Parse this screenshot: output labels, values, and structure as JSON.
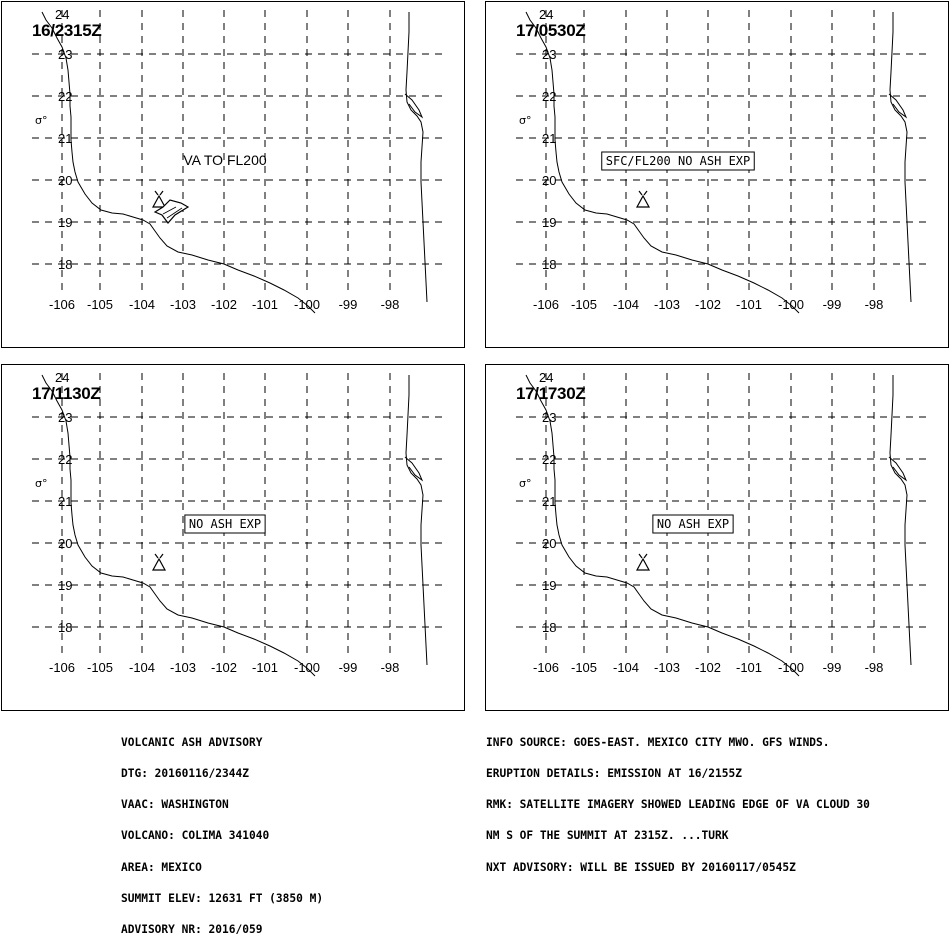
{
  "panels": [
    {
      "time": "16/2315Z",
      "annotation": "VA TO FL200",
      "boxed": false,
      "ash_cloud": true
    },
    {
      "time": "17/0530Z",
      "annotation": "SFC/FL200 NO ASH EXP",
      "boxed": true,
      "ash_cloud": false
    },
    {
      "time": "17/1130Z",
      "annotation": "NO ASH EXP",
      "boxed": true,
      "ash_cloud": false
    },
    {
      "time": "17/1730Z",
      "annotation": "NO ASH EXP",
      "boxed": true,
      "ash_cloud": false
    }
  ],
  "map": {
    "lat_labels": [
      "24",
      "23",
      "22",
      "21",
      "20",
      "19",
      "18"
    ],
    "lon_labels": [
      "-106",
      "-105",
      "-104",
      "-103",
      "-102",
      "-101",
      "-100",
      "-99",
      "-98"
    ],
    "coast_label": "σ°"
  },
  "footer_left": [
    "VOLCANIC ASH ADVISORY",
    "DTG: 20160116/2344Z",
    "VAAC: WASHINGTON",
    "VOLCANO: COLIMA 341040",
    "AREA: MEXICO",
    "SUMMIT ELEV: 12631 FT (3850 M)",
    "ADVISORY NR: 2016/059"
  ],
  "footer_right": [
    "INFO SOURCE: GOES-EAST. MEXICO CITY MWO. GFS WINDS.",
    "ERUPTION DETAILS: EMISSION AT 16/2155Z",
    "RMK: SATELLITE IMAGERY SHOWED LEADING EDGE OF VA CLOUD 30",
    "NM S OF THE SUMMIT AT 2315Z. ...TURK",
    "NXT ADVISORY: WILL BE ISSUED BY 20160117/0545Z"
  ]
}
